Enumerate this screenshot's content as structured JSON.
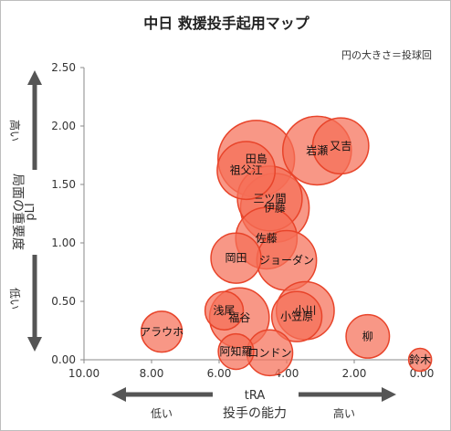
{
  "chart_data": {
    "type": "scatter",
    "title": "中日 救援投手起用マップ",
    "subtitle": "円の大きさ＝投球回",
    "xlabel": "tRA",
    "ylabel": "pLI",
    "x_sublabel": "投手の能力",
    "x_low": "低い",
    "x_high": "高い",
    "y_sublabel": "局面の重要度",
    "y_high": "高い",
    "y_low": "低い",
    "xlim": [
      10.0,
      0.0
    ],
    "ylim": [
      0.0,
      2.5
    ],
    "x_reversed": true,
    "xticks": [
      "10.00",
      "8.00",
      "6.00",
      "4.00",
      "2.00",
      "0.00"
    ],
    "yticks": [
      "0.00",
      "0.50",
      "1.00",
      "1.50",
      "2.00",
      "2.50"
    ],
    "grid": false,
    "colors": {
      "fill": "#f56f57",
      "stroke": "#e8442a",
      "arrow": "#555555"
    },
    "points": [
      {
        "name": "又吉",
        "x": 2.4,
        "y": 1.83,
        "size": 30
      },
      {
        "name": "岩瀬",
        "x": 3.1,
        "y": 1.79,
        "size": 45
      },
      {
        "name": "田島",
        "x": 4.9,
        "y": 1.72,
        "size": 56
      },
      {
        "name": "祖父江",
        "x": 5.2,
        "y": 1.62,
        "size": 32
      },
      {
        "name": "三ツ間",
        "x": 4.5,
        "y": 1.38,
        "size": 40
      },
      {
        "name": "伊藤",
        "x": 4.35,
        "y": 1.3,
        "size": 45
      },
      {
        "name": "佐藤",
        "x": 4.6,
        "y": 1.04,
        "size": 36
      },
      {
        "name": "岡田",
        "x": 5.5,
        "y": 0.87,
        "size": 24
      },
      {
        "name": "ジョーダン",
        "x": 4.0,
        "y": 0.85,
        "size": 34
      },
      {
        "name": "浅尾",
        "x": 5.85,
        "y": 0.42,
        "size": 14
      },
      {
        "name": "福谷",
        "x": 5.4,
        "y": 0.36,
        "size": 34
      },
      {
        "name": "小川",
        "x": 3.45,
        "y": 0.42,
        "size": 32
      },
      {
        "name": "小笠原",
        "x": 3.7,
        "y": 0.37,
        "size": 24
      },
      {
        "name": "アラウホ",
        "x": 7.7,
        "y": 0.24,
        "size": 16
      },
      {
        "name": "柳",
        "x": 1.6,
        "y": 0.2,
        "size": 18
      },
      {
        "name": "阿知羅",
        "x": 5.5,
        "y": 0.07,
        "size": 12
      },
      {
        "name": "ロンドン",
        "x": 4.5,
        "y": 0.06,
        "size": 20
      },
      {
        "name": "鈴木",
        "x": 0.05,
        "y": 0.0,
        "size": 5
      }
    ]
  }
}
